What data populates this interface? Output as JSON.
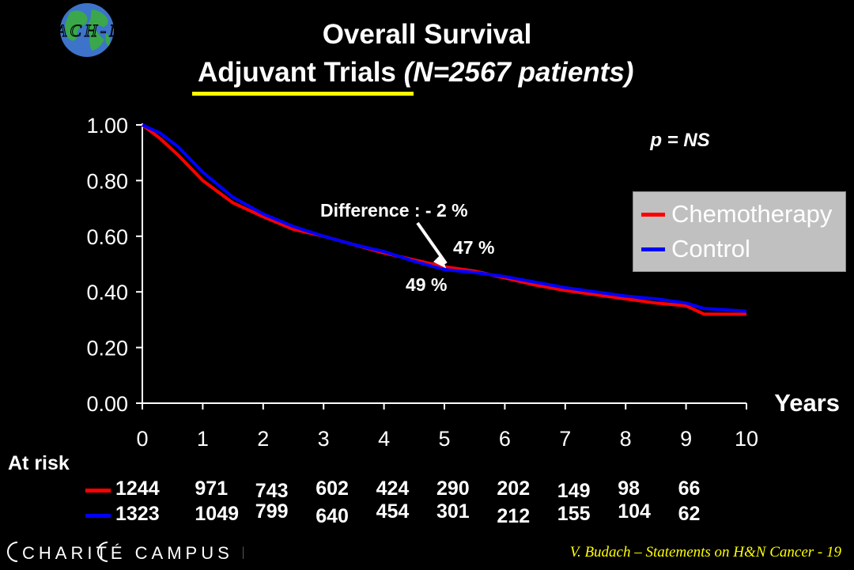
{
  "slide": {
    "title_line1": "Overall Survival",
    "title_line2_main": "Adjuvant Trials",
    "title_line2_italic": "(N=2567 patients)",
    "logo_text": "MACH-NC",
    "underline_color": "#ffff00",
    "footer_left_text": "CHARITÉ CAMPUS MITTE",
    "footer_right_text": "V. Budach – Statements on H&N Cancer - 19",
    "footer_right_color": "#ffff00"
  },
  "chart_data": {
    "type": "line",
    "title": "Overall Survival",
    "xlabel": "Years",
    "ylabel": "",
    "xlim": [
      0,
      10
    ],
    "ylim": [
      0,
      1
    ],
    "x_ticks": [
      0,
      1,
      2,
      3,
      4,
      5,
      6,
      7,
      8,
      9,
      10
    ],
    "x_tick_labels": [
      "0",
      "1",
      "2",
      "3",
      "4",
      "5",
      "6",
      "7",
      "8",
      "9",
      "10"
    ],
    "y_ticks": [
      0,
      0.2,
      0.4,
      0.6,
      0.8,
      1.0
    ],
    "y_tick_labels": [
      "0.00",
      "0.20",
      "0.40",
      "0.60",
      "0.80",
      "1.00"
    ],
    "grid": false,
    "legend_position": "right",
    "series": [
      {
        "name": "Chemotherapy",
        "color": "#ff0000",
        "x": [
          0,
          0.3,
          0.6,
          1,
          1.5,
          2,
          2.5,
          3,
          3.5,
          4,
          4.5,
          5,
          5.5,
          6,
          6.5,
          7,
          7.5,
          8,
          8.5,
          9,
          9.3,
          9.7,
          10
        ],
        "y": [
          1.0,
          0.95,
          0.89,
          0.8,
          0.72,
          0.67,
          0.625,
          0.6,
          0.57,
          0.54,
          0.515,
          0.49,
          0.475,
          0.45,
          0.425,
          0.405,
          0.39,
          0.375,
          0.36,
          0.35,
          0.32,
          0.32,
          0.32
        ]
      },
      {
        "name": "Control",
        "color": "#0000ff",
        "x": [
          0,
          0.3,
          0.6,
          1,
          1.5,
          2,
          2.5,
          3,
          3.5,
          4,
          4.5,
          5,
          5.5,
          6,
          6.5,
          7,
          7.5,
          8,
          8.5,
          9,
          9.3,
          9.7,
          10
        ],
        "y": [
          1.0,
          0.97,
          0.92,
          0.83,
          0.74,
          0.68,
          0.635,
          0.6,
          0.57,
          0.545,
          0.51,
          0.48,
          0.47,
          0.455,
          0.435,
          0.415,
          0.4,
          0.385,
          0.375,
          0.36,
          0.34,
          0.335,
          0.33
        ]
      }
    ],
    "annotations": {
      "pvalue": "p = NS",
      "difference": "Difference :  - 2 %",
      "label_upper": "47 %",
      "label_lower": "49 %"
    },
    "at_risk": {
      "title": "At risk",
      "rows": [
        {
          "color": "#ff0000",
          "values": [
            "1244",
            "971",
            "743",
            "602",
            "424",
            "290",
            "202",
            "149",
            "98",
            "66"
          ]
        },
        {
          "color": "#0000ff",
          "values": [
            "1323",
            "1049",
            "799",
            "640",
            "454",
            "301",
            "212",
            "155",
            "104",
            "62"
          ]
        }
      ]
    }
  }
}
